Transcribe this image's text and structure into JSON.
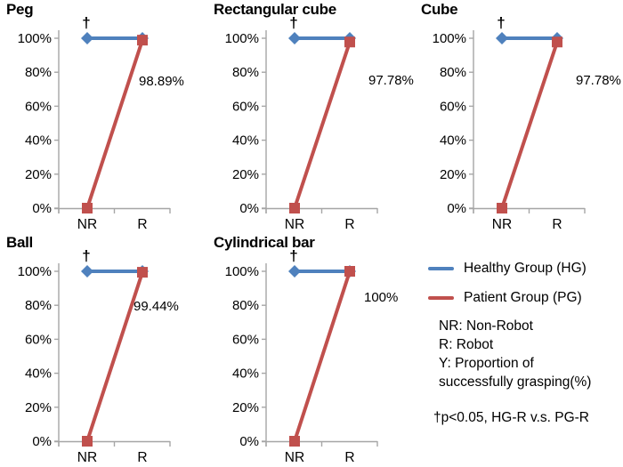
{
  "colors": {
    "healthy_group": "#4F81BD",
    "patient_group": "#C0504D",
    "axis": "#A6A6A6",
    "text": "#000000"
  },
  "chart_data": [
    {
      "type": "line",
      "title": "Peg",
      "categories": [
        "NR",
        "R"
      ],
      "series": [
        {
          "name": "Healthy Group (HG)",
          "values": [
            100,
            100
          ]
        },
        {
          "name": "Patient Group (PG)",
          "values": [
            0,
            98.89
          ]
        }
      ],
      "data_label": "98.89%",
      "dagger": "†",
      "ylabel": "Proportion of successfully grasping(%)",
      "ylim": [
        0,
        100
      ],
      "yticks": [
        "0%",
        "20%",
        "40%",
        "60%",
        "80%",
        "100%"
      ],
      "grid": false,
      "label_xy": [
        156,
        96
      ]
    },
    {
      "type": "line",
      "title": "Rectangular cube",
      "categories": [
        "NR",
        "R"
      ],
      "series": [
        {
          "name": "Healthy Group (HG)",
          "values": [
            100,
            100
          ]
        },
        {
          "name": "Patient Group (PG)",
          "values": [
            0,
            97.78
          ]
        }
      ],
      "data_label": "97.78%",
      "dagger": "†",
      "ylabel": "Proportion of successfully grasping(%)",
      "ylim": [
        0,
        100
      ],
      "yticks": [
        "0%",
        "20%",
        "40%",
        "60%",
        "80%",
        "100%"
      ],
      "grid": false,
      "label_xy": [
        181,
        95
      ]
    },
    {
      "type": "line",
      "title": "Cube",
      "categories": [
        "NR",
        "R"
      ],
      "series": [
        {
          "name": "Healthy Group (HG)",
          "values": [
            100,
            100
          ]
        },
        {
          "name": "Patient Group (PG)",
          "values": [
            0,
            97.78
          ]
        }
      ],
      "data_label": "97.78%",
      "dagger": "†",
      "ylabel": "Proportion of successfully grasping(%)",
      "ylim": [
        0,
        100
      ],
      "yticks": [
        "0%",
        "20%",
        "40%",
        "60%",
        "80%",
        "100%"
      ],
      "grid": false,
      "label_xy": [
        181,
        95
      ]
    },
    {
      "type": "line",
      "title": "Ball",
      "categories": [
        "NR",
        "R"
      ],
      "series": [
        {
          "name": "Healthy Group (HG)",
          "values": [
            100,
            100
          ]
        },
        {
          "name": "Patient Group (PG)",
          "values": [
            0,
            99.44
          ]
        }
      ],
      "data_label": "99.44%",
      "dagger": "†",
      "ylabel": "Proportion of successfully grasping(%)",
      "ylim": [
        0,
        100
      ],
      "yticks": [
        "0%",
        "20%",
        "40%",
        "60%",
        "80%",
        "100%"
      ],
      "grid": false,
      "label_xy": [
        150,
        87
      ]
    },
    {
      "type": "line",
      "title": "Cylindrical bar",
      "categories": [
        "NR",
        "R"
      ],
      "series": [
        {
          "name": "Healthy Group (HG)",
          "values": [
            100,
            100
          ]
        },
        {
          "name": "Patient Group (PG)",
          "values": [
            0,
            100
          ]
        }
      ],
      "data_label": "100%",
      "dagger": "†",
      "ylabel": "Proportion of successfully grasping(%)",
      "ylim": [
        0,
        100
      ],
      "yticks": [
        "0%",
        "20%",
        "40%",
        "60%",
        "80%",
        "100%"
      ],
      "grid": false,
      "label_xy": [
        176,
        77
      ]
    }
  ],
  "legend": {
    "position": "bottom-right",
    "items": [
      {
        "label": "Healthy Group (HG)",
        "series_key": "healthy_group"
      },
      {
        "label": "Patient Group (PG)",
        "series_key": "patient_group"
      }
    ],
    "notes": [
      "NR: Non-Robot",
      "R: Robot",
      "Y: Proportion of",
      "successfully grasping(%)"
    ],
    "significance": "†p<0.05, HG-R v.s. PG-R"
  }
}
